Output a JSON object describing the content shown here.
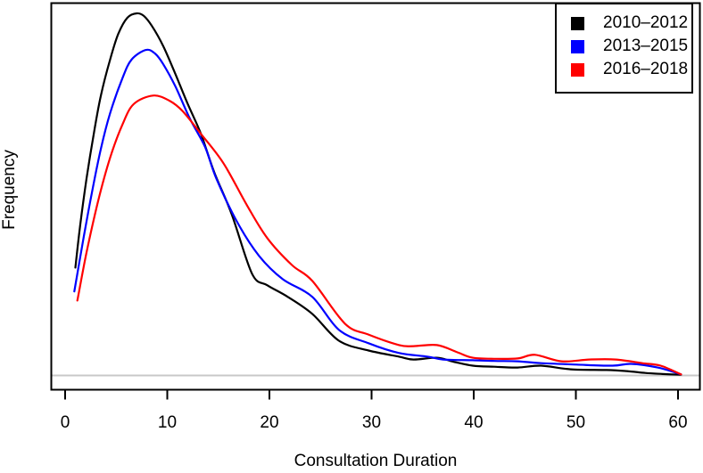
{
  "figure": {
    "background": "#ffffff",
    "axis_color": "#000000"
  },
  "chart_data": {
    "type": "line",
    "title": "",
    "xlabel": "Consultation Duration",
    "ylabel": "Frequency",
    "x_ticks": [
      0,
      10,
      20,
      30,
      40,
      50,
      60
    ],
    "xlim": [
      0,
      60
    ],
    "ylim": [
      0,
      1.05
    ],
    "y_axis_ticks_shown": false,
    "grid": false,
    "legend_position": "top-right",
    "zero_line": {
      "y": 0,
      "color": "#c8c8c8"
    },
    "series": [
      {
        "name": "2010–2012",
        "color": "#000000",
        "x": [
          1.0,
          1.5,
          2.1,
          2.8,
          3.5,
          4.4,
          5.2,
          6.1,
          7.0,
          7.7,
          8.5,
          9.6,
          10.8,
          12.0,
          13.3,
          14.6,
          16.3,
          18.3,
          19.8,
          21.8,
          24.2,
          26.8,
          29.7,
          32.7,
          34.1,
          36.4,
          38.0,
          39.9,
          42.0,
          44.3,
          46.6,
          49.5,
          53.0,
          55.0,
          56.8,
          58.5,
          60.3
        ],
        "y": [
          0.298,
          0.421,
          0.544,
          0.667,
          0.773,
          0.872,
          0.943,
          0.988,
          1.0,
          0.993,
          0.965,
          0.91,
          0.832,
          0.75,
          0.667,
          0.561,
          0.446,
          0.281,
          0.249,
          0.217,
          0.17,
          0.096,
          0.069,
          0.052,
          0.044,
          0.049,
          0.038,
          0.027,
          0.024,
          0.022,
          0.027,
          0.017,
          0.015,
          0.012,
          0.007,
          0.004,
          0.002
        ]
      },
      {
        "name": "2013–2015",
        "color": "#0000ff",
        "x": [
          0.9,
          1.8,
          2.6,
          3.5,
          4.4,
          5.6,
          6.5,
          7.9,
          8.8,
          9.6,
          10.8,
          12.2,
          13.7,
          14.8,
          16.9,
          19.0,
          21.3,
          24.2,
          26.8,
          29.7,
          32.7,
          35.5,
          37.0,
          39.9,
          42.0,
          44.3,
          46.6,
          50.1,
          53.6,
          55.4,
          58.0,
          60.3
        ],
        "y": [
          0.232,
          0.379,
          0.502,
          0.626,
          0.724,
          0.82,
          0.872,
          0.899,
          0.889,
          0.86,
          0.798,
          0.71,
          0.631,
          0.544,
          0.421,
          0.33,
          0.266,
          0.217,
          0.126,
          0.089,
          0.062,
          0.052,
          0.044,
          0.042,
          0.04,
          0.039,
          0.034,
          0.03,
          0.027,
          0.032,
          0.022,
          0.003
        ]
      },
      {
        "name": "2016–2018",
        "color": "#ff0000",
        "x": [
          1.2,
          2.1,
          3.2,
          4.4,
          5.6,
          6.7,
          8.6,
          10.2,
          11.5,
          13.3,
          15.5,
          17.8,
          19.8,
          22.2,
          24.2,
          27.4,
          29.7,
          32.7,
          34.1,
          36.4,
          38.4,
          39.9,
          42.0,
          44.3,
          46.0,
          48.6,
          51.3,
          53.9,
          56.5,
          58.3,
          60.3
        ],
        "y": [
          0.207,
          0.34,
          0.478,
          0.601,
          0.692,
          0.749,
          0.773,
          0.759,
          0.73,
          0.667,
          0.586,
          0.47,
          0.379,
          0.305,
          0.261,
          0.143,
          0.113,
          0.084,
          0.081,
          0.084,
          0.064,
          0.049,
          0.046,
          0.047,
          0.057,
          0.039,
          0.044,
          0.044,
          0.034,
          0.027,
          0.003
        ]
      }
    ]
  }
}
